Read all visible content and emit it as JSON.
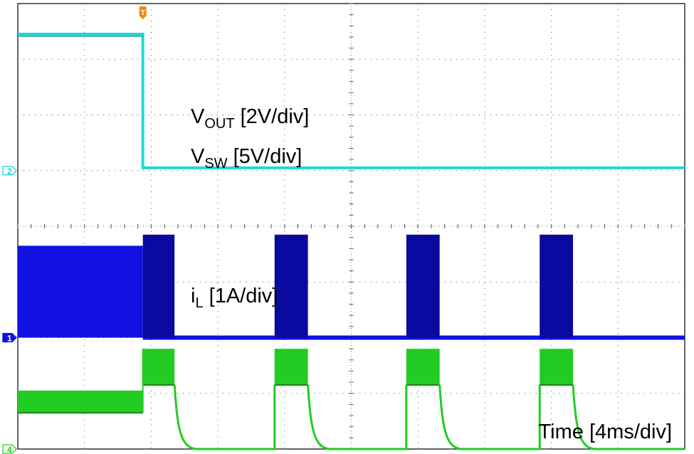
{
  "chart_data": {
    "type": "line",
    "title": "",
    "x_axis": {
      "label": "Time [4ms/div]",
      "units_per_div": 4,
      "unit": "ms",
      "divisions": 10,
      "range": [
        0,
        40
      ]
    },
    "y_axis": {
      "divisions": 8
    },
    "grid": true,
    "trigger_marker": "T",
    "trigger_time_ms": 7.5,
    "series": [
      {
        "name": "VOUT [2V/div]",
        "label_main": "V",
        "label_sub": "OUT",
        "label_rest": " [2V/div]",
        "channel": "2",
        "color": "#22d6d6",
        "scale_per_div": 2,
        "unit": "V",
        "ground_div": 5.0,
        "segments": [
          {
            "t_start": 0,
            "t_end": 7.5,
            "value_div": 7.45
          },
          {
            "t_start": 7.5,
            "t_end": 40,
            "value_div": 5.05
          }
        ]
      },
      {
        "name": "VSW [5V/div]",
        "label_main": "V",
        "label_sub": "SW",
        "label_rest": " [5V/div]",
        "channel": "1",
        "color": "#1010e0",
        "burst_color": "#0a0aa0",
        "scale_per_div": 5,
        "unit": "V",
        "ground_div": 2.0,
        "high_div": 3.85,
        "low_div": 2.0,
        "pre_trigger_switching": {
          "t_start": 0,
          "t_end": 7.5,
          "high_div": 3.65
        },
        "bursts": [
          {
            "t_start": 7.5,
            "t_end": 9.4
          },
          {
            "t_start": 15.4,
            "t_end": 17.4
          },
          {
            "t_start": 23.3,
            "t_end": 25.3
          },
          {
            "t_start": 31.3,
            "t_end": 33.3
          }
        ]
      },
      {
        "name": "iL [1A/div]",
        "label_main": "i",
        "label_sub": "L",
        "label_rest": " [1A/div]",
        "channel": "4",
        "color": "#22cc22",
        "scale_per_div": 1,
        "unit": "A",
        "ground_div": 0.0,
        "pre_trigger": {
          "t_start": 0,
          "t_end": 7.5,
          "high_div": 1.05,
          "low_div": 0.65
        },
        "burst_high_div": 1.8,
        "burst_low_div": 1.15,
        "idle_div": 0.0,
        "bursts": [
          {
            "t_start": 7.5,
            "t_end": 9.4
          },
          {
            "t_start": 15.4,
            "t_end": 17.4
          },
          {
            "t_start": 23.3,
            "t_end": 25.3
          },
          {
            "t_start": 31.3,
            "t_end": 33.3
          }
        ]
      }
    ]
  }
}
